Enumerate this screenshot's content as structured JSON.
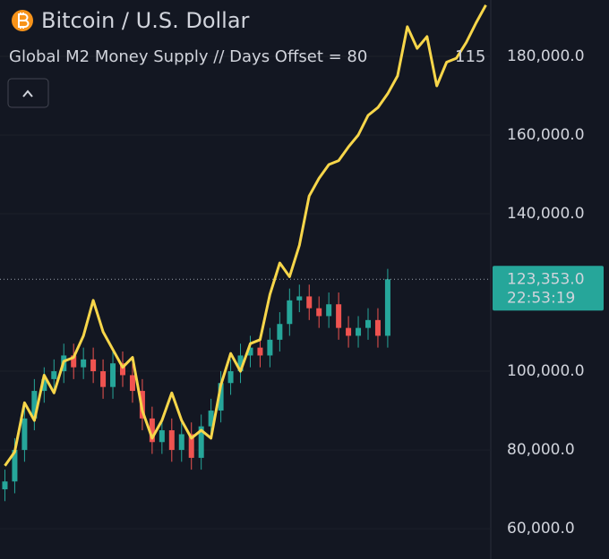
{
  "chart_data": {
    "type": "candlestick",
    "title": "Bitcoin / U.S. Dollar",
    "subtitle": "Global M2 Money Supply // Days Offset = 80",
    "subtitle_extra": "115",
    "categories": [
      null,
      null,
      null,
      null,
      null,
      null,
      null,
      null,
      null,
      null,
      null,
      null,
      null,
      null,
      null,
      null,
      null,
      null,
      null,
      null,
      null,
      null,
      null,
      null,
      null,
      null,
      null,
      null,
      null,
      null,
      null,
      null,
      null,
      null,
      null,
      null,
      null,
      null,
      null,
      null,
      null,
      null,
      null,
      null,
      null,
      null,
      null,
      null,
      null,
      null
    ],
    "open": [
      70000,
      72000,
      80000,
      88000,
      95000,
      98000,
      100000,
      104000,
      101000,
      103000,
      100000,
      96000,
      102000,
      99000,
      95000,
      88000,
      82000,
      85000,
      80000,
      84000,
      78000,
      86000,
      90000,
      97000,
      100000,
      104000,
      106000,
      104000,
      108000,
      112000,
      118000,
      119000,
      116000,
      114000,
      117000,
      111000,
      109000,
      111000,
      113000,
      109000,
      null,
      null,
      null,
      null,
      null,
      null,
      null,
      null,
      null,
      null
    ],
    "high": [
      75000,
      83000,
      91000,
      98000,
      101000,
      103000,
      107000,
      107000,
      106000,
      106000,
      103000,
      105000,
      105000,
      102000,
      98000,
      91000,
      88000,
      88000,
      87000,
      87000,
      89000,
      93000,
      100000,
      103000,
      107000,
      109000,
      109000,
      111000,
      115000,
      121000,
      122000,
      122000,
      119000,
      120000,
      120000,
      114000,
      114000,
      116000,
      116000,
      126000,
      null,
      null,
      null,
      null,
      null,
      null,
      null,
      null,
      null,
      null
    ],
    "low": [
      67000,
      69000,
      77000,
      85000,
      92000,
      95000,
      97000,
      98000,
      98000,
      97000,
      93000,
      93000,
      96000,
      92000,
      85000,
      79000,
      79000,
      77000,
      77000,
      75000,
      75000,
      83000,
      87000,
      94000,
      97000,
      101000,
      101000,
      101000,
      105000,
      109000,
      115000,
      113000,
      111000,
      111000,
      108000,
      106000,
      106000,
      108000,
      106000,
      106000,
      null,
      null,
      null,
      null,
      null,
      null,
      null,
      null,
      null,
      null
    ],
    "close": [
      72000,
      80000,
      88000,
      95000,
      98000,
      100000,
      104000,
      101000,
      103000,
      100000,
      96000,
      102000,
      99000,
      95000,
      88000,
      82000,
      85000,
      80000,
      84000,
      78000,
      86000,
      90000,
      97000,
      100000,
      104000,
      106000,
      104000,
      108000,
      112000,
      118000,
      119000,
      116000,
      114000,
      117000,
      111000,
      109000,
      111000,
      113000,
      109000,
      123353,
      null,
      null,
      null,
      null,
      null,
      null,
      null,
      null,
      null,
      null
    ],
    "up_color": "#26a69a",
    "down_color": "#ef5350",
    "overlay": {
      "type": "line",
      "color": "#f7d64a",
      "values": [
        76000,
        79500,
        92000,
        87500,
        99000,
        94500,
        102500,
        103500,
        109000,
        118000,
        110000,
        105500,
        101000,
        103500,
        90000,
        83000,
        87500,
        94500,
        87500,
        83000,
        85000,
        83000,
        96500,
        104500,
        100000,
        107000,
        108000,
        119500,
        127500,
        124000,
        132000,
        144500,
        149000,
        152500,
        153500,
        157000,
        160000,
        165000,
        167000,
        170500,
        175000,
        187500,
        182000,
        185000,
        172500,
        178500,
        179500,
        183500,
        188500,
        193000
      ]
    },
    "ylim": [
      52300,
      194300
    ],
    "yticks": [
      {
        "value": 60000,
        "label": "60,000.0"
      },
      {
        "value": 80000,
        "label": "80,000.0"
      },
      {
        "value": 100000,
        "label": "100,000.0"
      },
      {
        "value": 140000,
        "label": "140,000.0"
      },
      {
        "value": 160000,
        "label": "160,000.0"
      },
      {
        "value": 180000,
        "label": "180,000.0"
      }
    ],
    "grid": true,
    "last_price_label": "123,353.0",
    "countdown": "22:53:19"
  }
}
